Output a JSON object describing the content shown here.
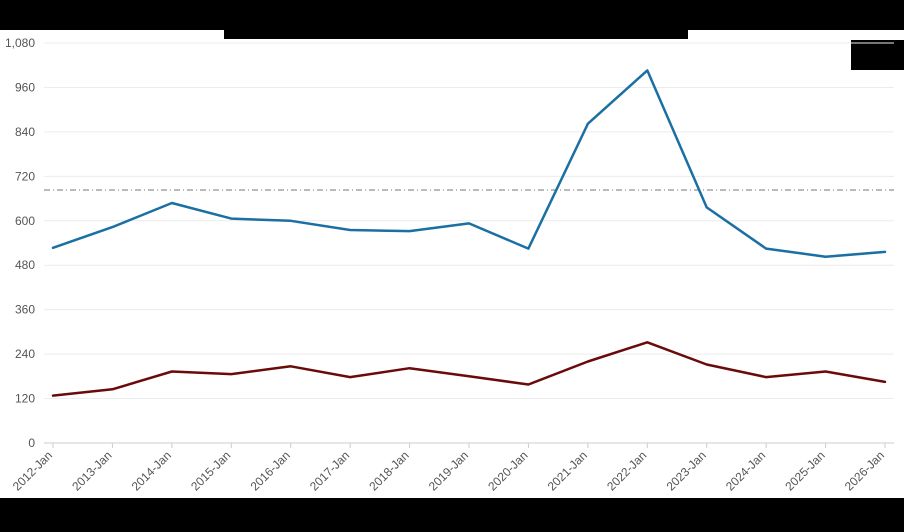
{
  "chart_data": {
    "type": "line",
    "title": "",
    "xlabel": "",
    "ylabel": "",
    "categories": [
      "2012-Jan",
      "2013-Jan",
      "2014-Jan",
      "2015-Jan",
      "2016-Jan",
      "2017-Jan",
      "2018-Jan",
      "2019-Jan",
      "2020-Jan",
      "2021-Jan",
      "2022-Jan",
      "2023-Jan",
      "2024-Jan",
      "2025-Jan",
      "2026-Jan"
    ],
    "series": [
      {
        "color": "#1a6fa3",
        "values": [
          527,
          583,
          648,
          606,
          600,
          575,
          572,
          593,
          525,
          862,
          1006,
          636,
          525,
          503,
          516
        ]
      },
      {
        "color": "#6b0a0a",
        "values": [
          128,
          145,
          193,
          186,
          207,
          178,
          202,
          180,
          158,
          220,
          272,
          212,
          178,
          193,
          165
        ]
      }
    ],
    "reference_line": {
      "value": 683,
      "style": "dash-dot",
      "color": "#777777"
    },
    "ylim": [
      0,
      1080
    ],
    "yticks": [
      0,
      120,
      240,
      360,
      480,
      600,
      720,
      840,
      960,
      1080
    ],
    "ytick_labels": [
      "0",
      "120",
      "240",
      "360",
      "480",
      "600",
      "720",
      "840",
      "960",
      "1,080"
    ],
    "grid": true,
    "legend": "top-right"
  }
}
